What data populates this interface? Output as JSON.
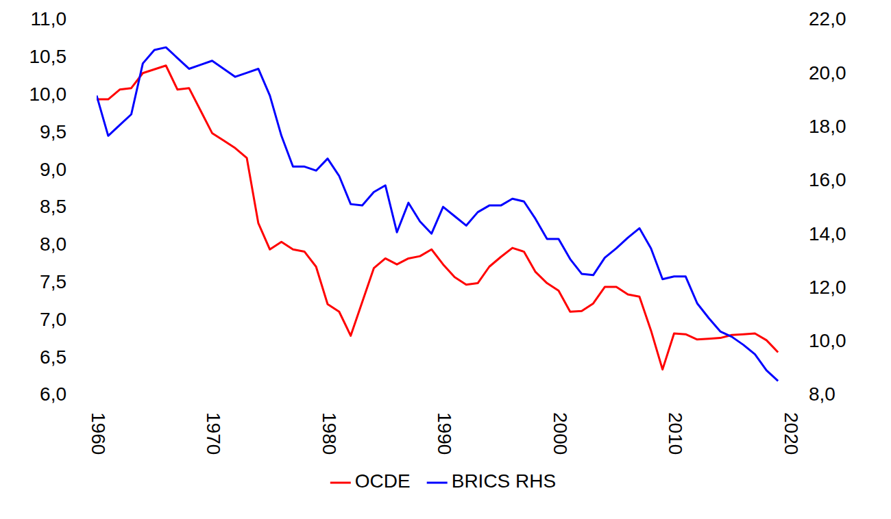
{
  "chart_data": {
    "type": "line",
    "x": [
      1960,
      1961,
      1962,
      1963,
      1964,
      1965,
      1966,
      1967,
      1968,
      1969,
      1970,
      1971,
      1972,
      1973,
      1974,
      1975,
      1976,
      1977,
      1978,
      1979,
      1980,
      1981,
      1982,
      1983,
      1984,
      1985,
      1986,
      1987,
      1988,
      1989,
      1990,
      1991,
      1992,
      1993,
      1994,
      1995,
      1996,
      1997,
      1998,
      1999,
      2000,
      2001,
      2002,
      2003,
      2004,
      2005,
      2006,
      2007,
      2008,
      2009,
      2010,
      2011,
      2012,
      2013,
      2014,
      2015,
      2016,
      2017,
      2018,
      2019
    ],
    "series": [
      {
        "name": "OCDE",
        "color": "#ff0000",
        "values": [
          9.95,
          9.95,
          10.08,
          10.1,
          10.3,
          10.35,
          10.4,
          10.08,
          10.1,
          9.8,
          9.5,
          9.4,
          9.3,
          9.17,
          8.3,
          7.95,
          8.05,
          7.95,
          7.92,
          7.72,
          7.22,
          7.12,
          6.8,
          7.25,
          7.7,
          7.83,
          7.75,
          7.83,
          7.86,
          7.95,
          7.75,
          7.58,
          7.48,
          7.5,
          7.72,
          7.85,
          7.97,
          7.92,
          7.65,
          7.5,
          7.4,
          7.12,
          7.13,
          7.23,
          7.45,
          7.45,
          7.35,
          7.32,
          6.87,
          6.35,
          6.83,
          6.82,
          6.75,
          6.76,
          6.77,
          6.81,
          6.82,
          6.83,
          6.74,
          6.58
        ]
      },
      {
        "name": "BRICS RHS",
        "color": "#0000ff",
        "axis": "y2",
        "values": [
          19.2,
          17.7,
          18.1,
          18.5,
          20.4,
          20.9,
          21.0,
          20.6,
          20.2,
          20.35,
          20.5,
          20.2,
          19.9,
          20.05,
          20.2,
          19.2,
          17.7,
          16.55,
          16.55,
          16.4,
          16.85,
          16.2,
          15.15,
          15.1,
          15.6,
          15.85,
          14.1,
          15.2,
          14.5,
          14.05,
          15.05,
          14.7,
          14.35,
          14.85,
          15.1,
          15.1,
          15.35,
          15.25,
          14.6,
          13.85,
          13.85,
          13.1,
          12.55,
          12.5,
          13.15,
          13.5,
          13.9,
          14.25,
          13.5,
          12.35,
          12.45,
          12.45,
          11.45,
          10.9,
          10.4,
          10.2,
          9.9,
          9.55,
          8.95,
          8.55
        ]
      }
    ],
    "xlim": [
      1960,
      2020
    ],
    "xticks": [
      1960,
      1970,
      1980,
      1990,
      2000,
      2010,
      2020
    ],
    "ylim": [
      6,
      11
    ],
    "yticks": [
      {
        "value": 6,
        "label": "6,0"
      },
      {
        "value": 6.5,
        "label": "6,5"
      },
      {
        "value": 7,
        "label": "7,0"
      },
      {
        "value": 7.5,
        "label": "7,5"
      },
      {
        "value": 8,
        "label": "8,0"
      },
      {
        "value": 8.5,
        "label": "8,5"
      },
      {
        "value": 9,
        "label": "9,0"
      },
      {
        "value": 9.5,
        "label": "9,5"
      },
      {
        "value": 10,
        "label": "10,0"
      },
      {
        "value": 10.5,
        "label": "10,5"
      },
      {
        "value": 11,
        "label": "11,0"
      }
    ],
    "y2lim": [
      8,
      22
    ],
    "y2ticks": [
      {
        "value": 8,
        "label": "8,0"
      },
      {
        "value": 10,
        "label": "10,0"
      },
      {
        "value": 12,
        "label": "12,0"
      },
      {
        "value": 14,
        "label": "14,0"
      },
      {
        "value": 16,
        "label": "16,0"
      },
      {
        "value": 18,
        "label": "18,0"
      },
      {
        "value": 20,
        "label": "20,0"
      },
      {
        "value": 22,
        "label": "22,0"
      }
    ],
    "grid": false,
    "legend": "bottom"
  }
}
